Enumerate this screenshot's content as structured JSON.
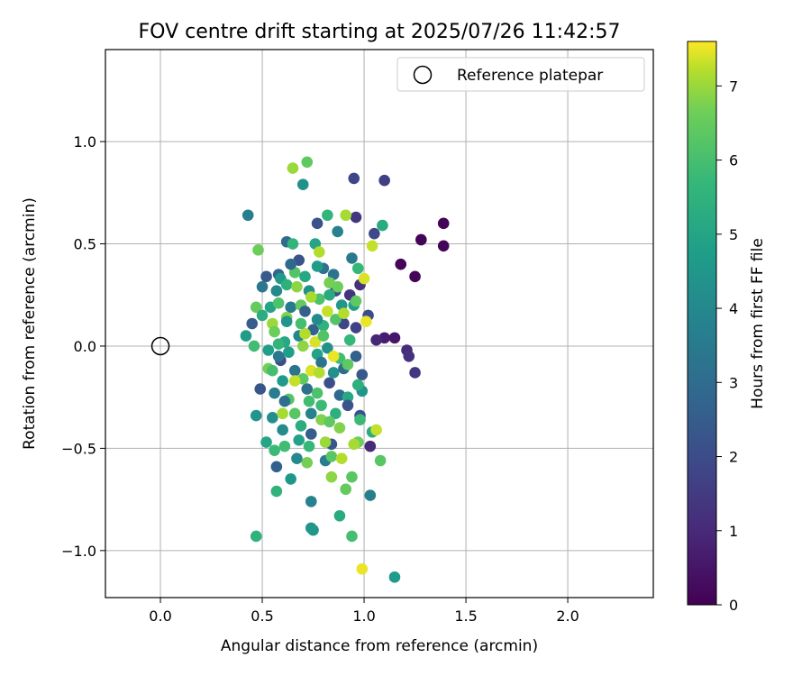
{
  "chart_data": {
    "type": "scatter",
    "title": "FOV centre drift starting at 2025/07/26 11:42:57",
    "xlabel": "Angular distance from reference (arcmin)",
    "ylabel": "Rotation from reference (arcmin)",
    "xlim": [
      -0.27,
      2.42
    ],
    "ylim": [
      -1.23,
      1.45
    ],
    "xticks": [
      0.0,
      0.5,
      1.0,
      1.5,
      2.0
    ],
    "yticks": [
      -1.0,
      -0.5,
      0.0,
      0.5,
      1.0
    ],
    "xtick_labels": [
      "0.0",
      "0.5",
      "1.0",
      "1.5",
      "2.0"
    ],
    "ytick_labels": [
      "−1.0",
      "−0.5",
      "0.0",
      "0.5",
      "1.0"
    ],
    "grid": true,
    "colormap": "viridis",
    "colorbar": {
      "label": "Hours from first FF file",
      "range": [
        0,
        7.6
      ],
      "ticks": [
        0,
        1,
        2,
        3,
        4,
        5,
        6,
        7
      ],
      "tick_labels": [
        "0",
        "1",
        "2",
        "3",
        "4",
        "5",
        "6",
        "7"
      ]
    },
    "legend": {
      "position": "upper-right",
      "entries": [
        {
          "label": "Reference platepar",
          "marker": "open-circle"
        }
      ]
    },
    "reference_point": {
      "x": 0.0,
      "y": 0.0
    },
    "series": [
      {
        "points": [
          {
            "x": 1.39,
            "y": 0.6,
            "c": 0.1
          },
          {
            "x": 1.39,
            "y": 0.49,
            "c": 0.1
          },
          {
            "x": 1.28,
            "y": 0.52,
            "c": 0.1
          },
          {
            "x": 1.18,
            "y": 0.4,
            "c": 0.1
          },
          {
            "x": 1.25,
            "y": 0.34,
            "c": 0.1
          },
          {
            "x": 1.15,
            "y": 0.04,
            "c": 0.5
          },
          {
            "x": 1.1,
            "y": 0.04,
            "c": 0.7
          },
          {
            "x": 1.06,
            "y": 0.03,
            "c": 0.9
          },
          {
            "x": 1.21,
            "y": -0.02,
            "c": 1.1
          },
          {
            "x": 1.22,
            "y": -0.05,
            "c": 1.2
          },
          {
            "x": 1.25,
            "y": -0.13,
            "c": 1.4
          },
          {
            "x": 1.1,
            "y": 0.81,
            "c": 1.6
          },
          {
            "x": 0.95,
            "y": 0.82,
            "c": 1.8
          },
          {
            "x": 0.96,
            "y": 0.63,
            "c": 1.4
          },
          {
            "x": 1.05,
            "y": 0.55,
            "c": 1.9
          },
          {
            "x": 1.02,
            "y": 0.15,
            "c": 2.0
          },
          {
            "x": 0.98,
            "y": 0.3,
            "c": 1.2
          },
          {
            "x": 0.93,
            "y": 0.25,
            "c": 1.3
          },
          {
            "x": 0.98,
            "y": -0.34,
            "c": 2.1
          },
          {
            "x": 1.03,
            "y": -0.49,
            "c": 1.0
          },
          {
            "x": 0.77,
            "y": 0.6,
            "c": 2.2
          },
          {
            "x": 0.49,
            "y": -0.21,
            "c": 2.3
          },
          {
            "x": 0.45,
            "y": 0.11,
            "c": 2.5
          },
          {
            "x": 0.57,
            "y": -0.59,
            "c": 2.6
          },
          {
            "x": 0.52,
            "y": 0.34,
            "c": 2.4
          },
          {
            "x": 0.62,
            "y": 0.51,
            "c": 3.0
          },
          {
            "x": 0.58,
            "y": 0.35,
            "c": 2.8
          },
          {
            "x": 0.68,
            "y": 0.42,
            "c": 2.2
          },
          {
            "x": 0.74,
            "y": -0.43,
            "c": 2.5
          },
          {
            "x": 0.86,
            "y": 0.27,
            "c": 2.0
          },
          {
            "x": 0.84,
            "y": -0.48,
            "c": 2.3
          },
          {
            "x": 0.9,
            "y": 0.11,
            "c": 1.8
          },
          {
            "x": 0.83,
            "y": -0.18,
            "c": 2.1
          },
          {
            "x": 0.75,
            "y": 0.08,
            "c": 2.7
          },
          {
            "x": 0.88,
            "y": -0.24,
            "c": 2.9
          },
          {
            "x": 0.8,
            "y": 0.38,
            "c": 3.2
          },
          {
            "x": 0.66,
            "y": -0.12,
            "c": 3.3
          },
          {
            "x": 0.59,
            "y": -0.07,
            "c": 2.0
          },
          {
            "x": 0.96,
            "y": 0.09,
            "c": 1.7
          },
          {
            "x": 0.99,
            "y": -0.14,
            "c": 2.4
          },
          {
            "x": 0.43,
            "y": 0.64,
            "c": 3.7
          },
          {
            "x": 0.5,
            "y": 0.29,
            "c": 3.4
          },
          {
            "x": 0.56,
            "y": -0.23,
            "c": 3.6
          },
          {
            "x": 0.64,
            "y": 0.19,
            "c": 3.5
          },
          {
            "x": 0.68,
            "y": 0.05,
            "c": 3.9
          },
          {
            "x": 0.74,
            "y": -0.33,
            "c": 3.8
          },
          {
            "x": 0.81,
            "y": -0.56,
            "c": 3.6
          },
          {
            "x": 0.85,
            "y": 0.35,
            "c": 3.2
          },
          {
            "x": 0.9,
            "y": -0.11,
            "c": 3.0
          },
          {
            "x": 0.94,
            "y": 0.43,
            "c": 3.5
          },
          {
            "x": 1.03,
            "y": -0.73,
            "c": 3.7
          },
          {
            "x": 0.74,
            "y": -0.76,
            "c": 3.8
          },
          {
            "x": 0.72,
            "y": -0.21,
            "c": 3.1
          },
          {
            "x": 0.6,
            "y": -0.41,
            "c": 4.1
          },
          {
            "x": 0.57,
            "y": 0.27,
            "c": 4.0
          },
          {
            "x": 0.7,
            "y": 0.79,
            "c": 4.3
          },
          {
            "x": 0.64,
            "y": -0.65,
            "c": 4.5
          },
          {
            "x": 0.55,
            "y": -0.35,
            "c": 4.2
          },
          {
            "x": 0.47,
            "y": -0.34,
            "c": 4.4
          },
          {
            "x": 0.59,
            "y": 0.33,
            "c": 4.6
          },
          {
            "x": 0.77,
            "y": 0.39,
            "c": 4.7
          },
          {
            "x": 0.82,
            "y": -0.01,
            "c": 4.3
          },
          {
            "x": 0.89,
            "y": 0.2,
            "c": 4.5
          },
          {
            "x": 0.95,
            "y": 0.2,
            "c": 4.8
          },
          {
            "x": 0.99,
            "y": -0.22,
            "c": 4.4
          },
          {
            "x": 1.15,
            "y": -1.13,
            "c": 4.6
          },
          {
            "x": 0.74,
            "y": -0.89,
            "c": 4.4
          },
          {
            "x": 0.75,
            "y": -0.9,
            "c": 4.5
          },
          {
            "x": 0.88,
            "y": -0.83,
            "c": 5.2
          },
          {
            "x": 0.42,
            "y": 0.05,
            "c": 4.7
          },
          {
            "x": 0.52,
            "y": -0.47,
            "c": 5.0
          },
          {
            "x": 0.61,
            "y": 0.02,
            "c": 5.1
          },
          {
            "x": 0.69,
            "y": -0.39,
            "c": 5.3
          },
          {
            "x": 0.76,
            "y": 0.5,
            "c": 5.0
          },
          {
            "x": 0.83,
            "y": 0.25,
            "c": 5.2
          },
          {
            "x": 0.92,
            "y": -0.25,
            "c": 5.1
          },
          {
            "x": 0.97,
            "y": -0.19,
            "c": 5.4
          },
          {
            "x": 1.04,
            "y": -0.42,
            "c": 5.3
          },
          {
            "x": 1.09,
            "y": 0.59,
            "c": 5.2
          },
          {
            "x": 0.47,
            "y": -0.93,
            "c": 5.5
          },
          {
            "x": 0.57,
            "y": -0.71,
            "c": 5.5
          },
          {
            "x": 0.58,
            "y": 0.01,
            "c": 5.6
          },
          {
            "x": 0.62,
            "y": 0.3,
            "c": 5.4
          },
          {
            "x": 0.65,
            "y": 0.5,
            "c": 5.6
          },
          {
            "x": 0.73,
            "y": -0.49,
            "c": 5.7
          },
          {
            "x": 0.79,
            "y": -0.29,
            "c": 5.8
          },
          {
            "x": 0.82,
            "y": 0.64,
            "c": 5.6
          },
          {
            "x": 0.88,
            "y": -0.06,
            "c": 5.9
          },
          {
            "x": 0.94,
            "y": -0.93,
            "c": 6.0
          },
          {
            "x": 0.97,
            "y": 0.38,
            "c": 5.7
          },
          {
            "x": 1.08,
            "y": -0.56,
            "c": 6.3
          },
          {
            "x": 0.48,
            "y": 0.47,
            "c": 6.6
          },
          {
            "x": 0.47,
            "y": 0.19,
            "c": 6.5
          },
          {
            "x": 0.56,
            "y": -0.51,
            "c": 5.8
          },
          {
            "x": 0.61,
            "y": -0.49,
            "c": 5.9
          },
          {
            "x": 0.66,
            "y": 0.36,
            "c": 6.2
          },
          {
            "x": 0.7,
            "y": -0.16,
            "c": 6.4
          },
          {
            "x": 0.72,
            "y": 0.9,
            "c": 6.4
          },
          {
            "x": 0.78,
            "y": 0.23,
            "c": 6.1
          },
          {
            "x": 0.84,
            "y": -0.54,
            "c": 6.3
          },
          {
            "x": 0.86,
            "y": 0.13,
            "c": 6.2
          },
          {
            "x": 0.91,
            "y": -0.7,
            "c": 6.5
          },
          {
            "x": 0.94,
            "y": -0.64,
            "c": 6.3
          },
          {
            "x": 0.97,
            "y": -0.47,
            "c": 6.6
          },
          {
            "x": 0.96,
            "y": 0.22,
            "c": 6.4
          },
          {
            "x": 0.65,
            "y": 0.87,
            "c": 7.0
          },
          {
            "x": 0.78,
            "y": 0.46,
            "c": 7.2
          },
          {
            "x": 0.91,
            "y": 0.64,
            "c": 7.1
          },
          {
            "x": 1.04,
            "y": 0.49,
            "c": 7.3
          },
          {
            "x": 0.55,
            "y": 0.11,
            "c": 7.0
          },
          {
            "x": 0.6,
            "y": -0.33,
            "c": 7.1
          },
          {
            "x": 0.66,
            "y": -0.17,
            "c": 7.3
          },
          {
            "x": 0.71,
            "y": 0.06,
            "c": 7.2
          },
          {
            "x": 0.74,
            "y": -0.12,
            "c": 7.4
          },
          {
            "x": 0.82,
            "y": 0.17,
            "c": 7.3
          },
          {
            "x": 0.85,
            "y": -0.05,
            "c": 7.5
          },
          {
            "x": 0.9,
            "y": 0.16,
            "c": 7.2
          },
          {
            "x": 0.95,
            "y": -0.48,
            "c": 7.1
          },
          {
            "x": 1.0,
            "y": 0.33,
            "c": 7.4
          },
          {
            "x": 1.01,
            "y": 0.12,
            "c": 7.5
          },
          {
            "x": 1.06,
            "y": -0.41,
            "c": 7.3
          },
          {
            "x": 0.99,
            "y": -1.09,
            "c": 7.5
          },
          {
            "x": 0.89,
            "y": -0.55,
            "c": 7.2
          },
          {
            "x": 0.81,
            "y": -0.47,
            "c": 7.0
          },
          {
            "x": 0.76,
            "y": 0.02,
            "c": 7.4
          },
          {
            "x": 0.67,
            "y": 0.29,
            "c": 6.9
          },
          {
            "x": 0.62,
            "y": 0.14,
            "c": 6.8
          },
          {
            "x": 0.53,
            "y": -0.11,
            "c": 6.7
          },
          {
            "x": 0.56,
            "y": 0.07,
            "c": 6.6
          },
          {
            "x": 0.69,
            "y": 0.2,
            "c": 6.5
          },
          {
            "x": 0.72,
            "y": -0.57,
            "c": 6.7
          },
          {
            "x": 0.79,
            "y": -0.36,
            "c": 6.8
          },
          {
            "x": 0.84,
            "y": -0.64,
            "c": 6.9
          },
          {
            "x": 0.87,
            "y": 0.29,
            "c": 6.6
          },
          {
            "x": 0.92,
            "y": -0.09,
            "c": 6.4
          },
          {
            "x": 0.5,
            "y": 0.15,
            "c": 5.3
          },
          {
            "x": 0.54,
            "y": 0.19,
            "c": 5.0
          },
          {
            "x": 0.63,
            "y": -0.03,
            "c": 4.8
          },
          {
            "x": 0.68,
            "y": -0.46,
            "c": 4.9
          },
          {
            "x": 0.71,
            "y": 0.34,
            "c": 5.1
          },
          {
            "x": 0.77,
            "y": -0.04,
            "c": 4.9
          },
          {
            "x": 0.8,
            "y": 0.1,
            "c": 5.5
          },
          {
            "x": 0.86,
            "y": -0.33,
            "c": 5.4
          },
          {
            "x": 0.93,
            "y": 0.03,
            "c": 5.7
          },
          {
            "x": 0.98,
            "y": -0.36,
            "c": 5.8
          },
          {
            "x": 0.46,
            "y": 0.0,
            "c": 5.9
          },
          {
            "x": 0.55,
            "y": -0.12,
            "c": 6.0
          },
          {
            "x": 0.58,
            "y": 0.21,
            "c": 6.1
          },
          {
            "x": 0.63,
            "y": -0.26,
            "c": 6.2
          },
          {
            "x": 0.66,
            "y": -0.33,
            "c": 6.3
          },
          {
            "x": 0.69,
            "y": 0.11,
            "c": 6.0
          },
          {
            "x": 0.73,
            "y": -0.27,
            "c": 5.9
          },
          {
            "x": 0.77,
            "y": -0.23,
            "c": 6.1
          },
          {
            "x": 0.8,
            "y": 0.05,
            "c": 6.2
          },
          {
            "x": 0.83,
            "y": -0.37,
            "c": 6.4
          },
          {
            "x": 0.64,
            "y": 0.4,
            "c": 2.9
          },
          {
            "x": 0.61,
            "y": -0.27,
            "c": 3.1
          },
          {
            "x": 0.58,
            "y": -0.05,
            "c": 3.4
          },
          {
            "x": 0.71,
            "y": 0.17,
            "c": 2.6
          },
          {
            "x": 0.79,
            "y": -0.08,
            "c": 3.3
          },
          {
            "x": 0.92,
            "y": -0.29,
            "c": 2.2
          },
          {
            "x": 0.96,
            "y": -0.05,
            "c": 2.6
          },
          {
            "x": 0.87,
            "y": 0.56,
            "c": 3.8
          },
          {
            "x": 0.73,
            "y": 0.27,
            "c": 4.2
          },
          {
            "x": 0.67,
            "y": -0.55,
            "c": 4.0
          },
          {
            "x": 0.62,
            "y": 0.12,
            "c": 4.4
          },
          {
            "x": 0.6,
            "y": -0.17,
            "c": 4.6
          },
          {
            "x": 0.53,
            "y": -0.02,
            "c": 4.8
          },
          {
            "x": 0.77,
            "y": 0.13,
            "c": 4.1
          },
          {
            "x": 0.85,
            "y": -0.13,
            "c": 4.3
          },
          {
            "x": 0.7,
            "y": 0.0,
            "c": 6.9
          },
          {
            "x": 0.74,
            "y": 0.24,
            "c": 7.1
          },
          {
            "x": 0.78,
            "y": -0.13,
            "c": 7.2
          },
          {
            "x": 0.83,
            "y": 0.31,
            "c": 6.7
          },
          {
            "x": 0.88,
            "y": -0.4,
            "c": 6.8
          }
        ]
      }
    ]
  }
}
